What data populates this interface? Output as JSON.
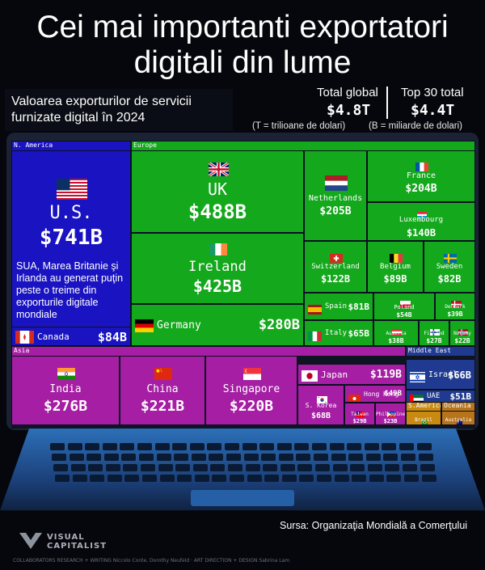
{
  "header": {
    "title": "Cei mai importanti exportatori digitali din lume",
    "subtitle": "Valoarea exporturilor de servicii furnizate digital în 2024",
    "total_global_label": "Total global",
    "total_global_value": "$4.8T",
    "top30_label": "Top 30 total",
    "top30_value": "$4.4T",
    "note_t": "(T = trilioane de dolari)",
    "note_b": "(B = miliarde de dolari)"
  },
  "annotation": "SUA, Marea Britanie şi Irlanda au generat puţin peste o treime din exporturile digitale mondiale",
  "footer": {
    "source": "Sursa: Organizaţia Mondială a Comerţului",
    "brand_line1": "VISUAL",
    "brand_line2": "CAPITALIST",
    "collaborators": "COLLABORATORS   RESEARCH + WRITING Niccolo Conte, Dorothy Neufeld   ·   ART DIRECTION + DESIGN Sabrina Lam"
  },
  "colors": {
    "N. America": "#1a13c2",
    "Europe": "#14a81c",
    "Asia": "#a51ea3",
    "Middle East": "#1f3a90",
    "S.America": "#c98a12",
    "Oceania": "#b8741a"
  },
  "chart_data": {
    "type": "treemap",
    "title": "Cei mai importanti exportatori digitali din lume",
    "subtitle": "Valoarea exporturilor de servicii furnizate digital în 2024",
    "unit": "B",
    "regions": [
      {
        "name": "N. America",
        "label": "N. America"
      },
      {
        "name": "Europe",
        "label": "Europe"
      },
      {
        "name": "Asia",
        "label": "Asia"
      },
      {
        "name": "Middle East",
        "label": "Middle East"
      },
      {
        "name": "S.America",
        "label": "S.America"
      },
      {
        "name": "Oceania",
        "label": "Oceania"
      }
    ],
    "items": [
      {
        "name": "U.S.",
        "value": 741,
        "value_label": "$741B",
        "region": "N. America",
        "flag": "us"
      },
      {
        "name": "Canada",
        "value": 84,
        "value_label": "$84B",
        "region": "N. America",
        "flag": "ca"
      },
      {
        "name": "UK",
        "value": 488,
        "value_label": "$488B",
        "region": "Europe",
        "flag": "uk"
      },
      {
        "name": "Ireland",
        "value": 425,
        "value_label": "$425B",
        "region": "Europe",
        "flag": "ie"
      },
      {
        "name": "Germany",
        "value": 280,
        "value_label": "$280B",
        "region": "Europe",
        "flag": "de"
      },
      {
        "name": "Netherlands",
        "value": 205,
        "value_label": "$205B",
        "region": "Europe",
        "flag": "nl"
      },
      {
        "name": "France",
        "value": 204,
        "value_label": "$204B",
        "region": "Europe",
        "flag": "fr"
      },
      {
        "name": "Luxembourg",
        "value": 140,
        "value_label": "$140B",
        "region": "Europe",
        "flag": "lu"
      },
      {
        "name": "Switzerland",
        "value": 122,
        "value_label": "$122B",
        "region": "Europe",
        "flag": "ch"
      },
      {
        "name": "Belgium",
        "value": 89,
        "value_label": "$89B",
        "region": "Europe",
        "flag": "be"
      },
      {
        "name": "Sweden",
        "value": 82,
        "value_label": "$82B",
        "region": "Europe",
        "flag": "se"
      },
      {
        "name": "Spain",
        "value": 81,
        "value_label": "$81B",
        "region": "Europe",
        "flag": "es"
      },
      {
        "name": "Italy",
        "value": 65,
        "value_label": "$65B",
        "region": "Europe",
        "flag": "it"
      },
      {
        "name": "Poland",
        "value": 54,
        "value_label": "$54B",
        "region": "Europe",
        "flag": "pl"
      },
      {
        "name": "Denmark",
        "value": 39,
        "value_label": "$39B",
        "region": "Europe",
        "flag": "dk"
      },
      {
        "name": "Austria",
        "value": 38,
        "value_label": "$38B",
        "region": "Europe",
        "flag": "at"
      },
      {
        "name": "Finland",
        "value": 27,
        "value_label": "$27B",
        "region": "Europe",
        "flag": "fi"
      },
      {
        "name": "Norway",
        "value": 22,
        "value_label": "$22B",
        "region": "Europe",
        "flag": "no"
      },
      {
        "name": "India",
        "value": 276,
        "value_label": "$276B",
        "region": "Asia",
        "flag": "in"
      },
      {
        "name": "China",
        "value": 221,
        "value_label": "$221B",
        "region": "Asia",
        "flag": "cn"
      },
      {
        "name": "Singapore",
        "value": 220,
        "value_label": "$220B",
        "region": "Asia",
        "flag": "sg"
      },
      {
        "name": "Japan",
        "value": 119,
        "value_label": "$119B",
        "region": "Asia",
        "flag": "jp"
      },
      {
        "name": "S. Korea",
        "value": 68,
        "value_label": "$68B",
        "region": "Asia",
        "flag": "kr"
      },
      {
        "name": "Hong Kong",
        "value": 49,
        "value_label": "$49B",
        "region": "Asia",
        "flag": "hk"
      },
      {
        "name": "Taiwan",
        "value": 29,
        "value_label": "$29B",
        "region": "Asia",
        "flag": "tw"
      },
      {
        "name": "Philippines",
        "value": 23,
        "value_label": "$23B",
        "region": "Asia",
        "flag": "ph"
      },
      {
        "name": "Israel",
        "value": 66,
        "value_label": "$66B",
        "region": "Middle East",
        "flag": "il"
      },
      {
        "name": "UAE",
        "value": 51,
        "value_label": "$51B",
        "region": "Middle East",
        "flag": "ae"
      },
      {
        "name": "Brazil",
        "value": 29,
        "value_label": "$29B",
        "region": "S.America",
        "flag": "br"
      },
      {
        "name": "Australia",
        "value": 22,
        "value_label": "$22B",
        "region": "Oceania",
        "flag": "au"
      }
    ]
  }
}
